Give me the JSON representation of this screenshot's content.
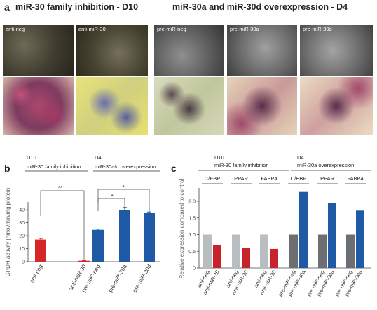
{
  "panel_a": {
    "letter": "a",
    "title_left": "miR-30 family inhibition - D10",
    "title_right": "miR-30a and miR-30d overexpression - D4",
    "tiles_top": [
      "anti-neg",
      "anti-miR-30",
      "pre-miR-neg",
      "pre-miR-30a",
      "pre-miR-30d"
    ]
  },
  "panel_b": {
    "letter": "b",
    "group_left_line1": "D10",
    "group_left_line2": "miR-30 family inhibition",
    "group_right_line1": "D4",
    "group_right_line2": "miR-30a/d overexpression",
    "sig_left": "**",
    "sig_mid": "*",
    "sig_right": "*"
  },
  "panel_c": {
    "letter": "c",
    "group_left_line1": "D10",
    "group_left_line2": "miR-30 family inhibition",
    "group_right_line1": "D4",
    "group_right_line2": "miR-30a overexpression",
    "gene_labels": [
      "C/EBP",
      "PPAR",
      "FABP4",
      "C/EBP",
      "PPAR",
      "FABP4"
    ]
  },
  "chart_data": [
    {
      "type": "bar",
      "panel": "b",
      "categories": [
        "anti-neg",
        "anti-miR-30",
        "pre-miR-neg",
        "pre-miR-30a",
        "pre-miR-30d"
      ],
      "values": [
        17,
        0.7,
        24.5,
        40,
        37.5
      ],
      "errors": [
        0.8,
        0.2,
        0.6,
        1.8,
        0.8
      ],
      "colors": [
        "#d62728",
        "#d62728",
        "#1f5aa6",
        "#1f5aa6",
        "#1f5aa6"
      ],
      "ylabel": "GPDH activity [nmol/min/mg protein]",
      "yticks": [
        0,
        10,
        20,
        30,
        40
      ],
      "ylim": [
        0,
        46
      ]
    },
    {
      "type": "bar",
      "panel": "c",
      "categories": [
        "anti-neg",
        "anti-miR-30",
        "anti-neg",
        "anti-miR-30",
        "anti-neg",
        "anti-miR-30",
        "pre-miR-neg",
        "pre-miR-30a",
        "pre-miR-neg",
        "pre-miR-30a",
        "pre-miR-neg",
        "pre-miR-30a"
      ],
      "values": [
        1.0,
        0.68,
        1.0,
        0.6,
        1.0,
        0.57,
        1.0,
        2.28,
        1.0,
        1.95,
        1.0,
        1.72
      ],
      "colors": [
        "#b8bdbf",
        "#c8232c",
        "#b8bdbf",
        "#c8232c",
        "#b8bdbf",
        "#c8232c",
        "#6b6e72",
        "#1f5aa6",
        "#6b6e72",
        "#1f5aa6",
        "#6b6e72",
        "#1f5aa6"
      ],
      "ylabel": "Relative expression compared to control",
      "yticks": [
        "0",
        "0.5",
        "1.0",
        "1.5",
        "2.0"
      ],
      "ylim": [
        0,
        2.4
      ]
    }
  ]
}
